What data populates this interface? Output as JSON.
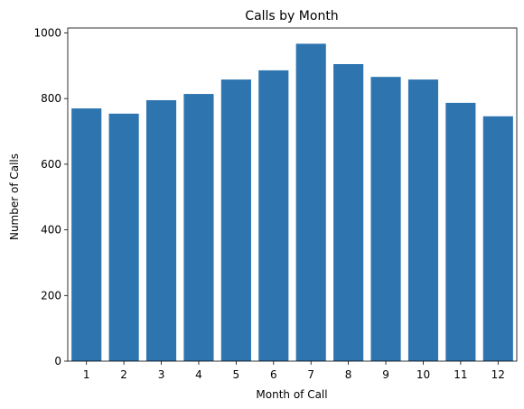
{
  "chart_data": {
    "type": "bar",
    "title": "Calls by Month",
    "xlabel": "Month of Call",
    "ylabel": "Number of Calls",
    "categories": [
      "1",
      "2",
      "3",
      "4",
      "5",
      "6",
      "7",
      "8",
      "9",
      "10",
      "11",
      "12"
    ],
    "values": [
      770,
      754,
      795,
      814,
      858,
      886,
      967,
      905,
      866,
      858,
      787,
      746
    ],
    "ylim": [
      0,
      1015
    ],
    "yticks": [
      0,
      200,
      400,
      600,
      800,
      1000
    ],
    "grid": false,
    "bar_color": "#2e75b0"
  }
}
